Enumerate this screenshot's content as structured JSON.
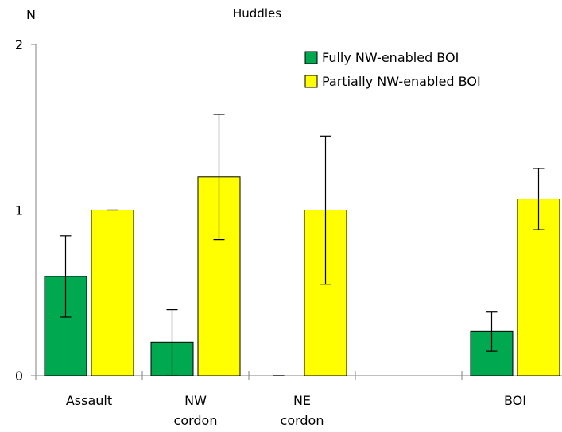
{
  "chart_data": {
    "type": "bar",
    "title": "Huddles",
    "ylabel": "N",
    "xlabel": "",
    "ylim": [
      0,
      2
    ],
    "yticks": [
      0,
      1,
      2
    ],
    "grid": false,
    "legend_position": "top-right",
    "categories": [
      {
        "label": [
          "Assault"
        ],
        "x": 1
      },
      {
        "label": [
          "NW",
          "cordon"
        ],
        "x": 2
      },
      {
        "label": [
          "NE",
          "cordon"
        ],
        "x": 3
      },
      {
        "label": [
          "BOI"
        ],
        "x": 5
      }
    ],
    "x_divisions": [
      0.5,
      1.5,
      2.5,
      3.5,
      4.5,
      5.5
    ],
    "series": [
      {
        "name": "Fully NW-enabled BOI",
        "color": "#00a94f",
        "values": [
          0.6,
          0.2,
          0.0,
          0.267
        ],
        "error_low": [
          0.355,
          0.0,
          0.0,
          0.148
        ],
        "error_high": [
          0.845,
          0.4,
          0.0,
          0.385
        ]
      },
      {
        "name": "Partially NW-enabled BOI",
        "color": "#ffff00",
        "values": [
          1.0,
          1.2,
          1.0,
          1.067
        ],
        "error_low": [
          1.0,
          0.822,
          0.553,
          0.882
        ],
        "error_high": [
          1.0,
          1.578,
          1.447,
          1.252
        ]
      }
    ]
  }
}
